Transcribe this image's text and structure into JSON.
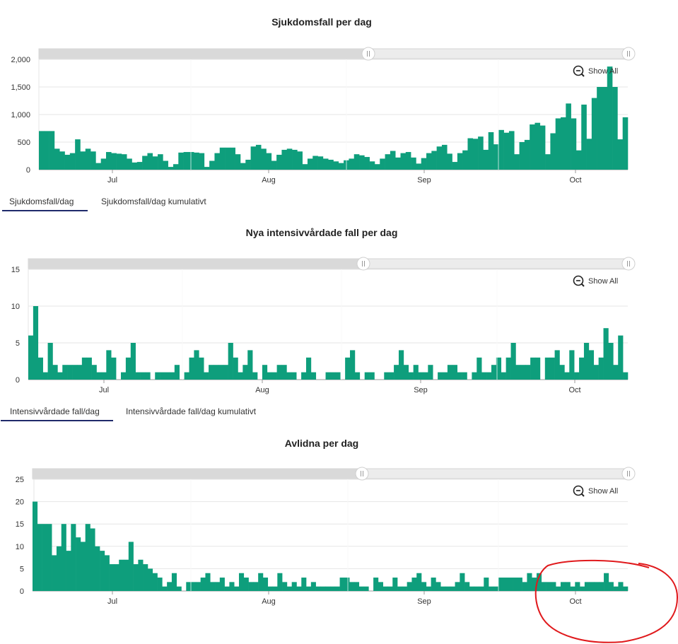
{
  "colors": {
    "bar": "#0e9e7c",
    "grid": "#e6e6e6",
    "scroll_bg": "#e3e3e3",
    "tab_underline": "#1f2a6b",
    "annotation": "#e0191c"
  },
  "zoom_label": "Show All",
  "tabs_1": [
    "Sjukdomsfall/dag",
    "Sjukdomsfall/dag kumulativt"
  ],
  "tabs_2": [
    "Intensivvårdade fall/dag",
    "Intensivvårdade fall/dag kumulativt"
  ],
  "chart_data": [
    {
      "type": "bar",
      "title": "Sjukdomsfall per dag",
      "ylim": [
        0,
        2000
      ],
      "yticks": [
        0,
        500,
        1000,
        1500,
        2000
      ],
      "ytick_labels": [
        "0",
        "500",
        "1,000",
        "1,500",
        "2,000"
      ],
      "month_labels": [
        "Jul",
        "Aug",
        "Sep",
        "Oct"
      ],
      "values": [
        700,
        700,
        700,
        380,
        330,
        270,
        300,
        550,
        330,
        380,
        330,
        120,
        200,
        320,
        300,
        290,
        280,
        200,
        130,
        140,
        250,
        300,
        240,
        280,
        160,
        50,
        100,
        310,
        320,
        320,
        310,
        300,
        50,
        160,
        300,
        400,
        400,
        400,
        280,
        120,
        180,
        420,
        450,
        380,
        300,
        160,
        270,
        360,
        380,
        360,
        330,
        100,
        200,
        250,
        240,
        200,
        180,
        150,
        120,
        170,
        200,
        280,
        260,
        230,
        150,
        100,
        200,
        280,
        340,
        220,
        300,
        320,
        220,
        110,
        210,
        300,
        340,
        420,
        450,
        290,
        140,
        300,
        350,
        570,
        560,
        600,
        360,
        680,
        460,
        720,
        670,
        700,
        280,
        500,
        540,
        820,
        850,
        800,
        280,
        660,
        930,
        950,
        1200,
        930,
        350,
        1180,
        560,
        1300,
        1500,
        1500,
        1870,
        1500,
        550,
        950
      ]
    },
    {
      "type": "bar",
      "title": "Nya intensivvårdade fall per dag",
      "ylim": [
        0,
        15
      ],
      "yticks": [
        0,
        5,
        10,
        15
      ],
      "ytick_labels": [
        "0",
        "5",
        "10",
        "15"
      ],
      "month_labels": [
        "Jul",
        "Aug",
        "Sep",
        "Oct"
      ],
      "values": [
        6,
        10,
        3,
        1,
        5,
        2,
        1,
        2,
        2,
        2,
        2,
        3,
        3,
        2,
        1,
        1,
        4,
        3,
        0,
        1,
        3,
        5,
        1,
        1,
        1,
        0,
        1,
        1,
        1,
        1,
        2,
        0,
        1,
        3,
        4,
        3,
        1,
        2,
        2,
        2,
        2,
        5,
        3,
        1,
        2,
        4,
        1,
        0,
        2,
        1,
        1,
        2,
        2,
        1,
        1,
        0,
        1,
        3,
        1,
        0,
        0,
        1,
        1,
        1,
        0,
        3,
        4,
        1,
        0,
        1,
        1,
        0,
        0,
        1,
        1,
        2,
        4,
        2,
        1,
        2,
        1,
        1,
        2,
        0,
        1,
        1,
        2,
        2,
        1,
        1,
        0,
        1,
        3,
        1,
        1,
        2,
        3,
        1,
        3,
        5,
        2,
        2,
        2,
        3,
        3,
        0,
        3,
        3,
        4,
        2,
        1,
        4,
        1,
        3,
        5,
        4,
        2,
        3,
        7,
        5,
        2,
        6,
        1
      ]
    },
    {
      "type": "bar",
      "title": "Avlidna per dag",
      "ylim": [
        0,
        25
      ],
      "yticks": [
        0,
        5,
        10,
        15,
        20,
        25
      ],
      "ytick_labels": [
        "0",
        "5",
        "10",
        "15",
        "20",
        "25"
      ],
      "month_labels": [
        "Jul",
        "Aug",
        "Sep",
        "Oct"
      ],
      "values": [
        20,
        15,
        15,
        15,
        8,
        10,
        15,
        9,
        15,
        12,
        11,
        15,
        14,
        10,
        9,
        8,
        6,
        6,
        7,
        7,
        11,
        6,
        7,
        6,
        5,
        4,
        3,
        1,
        2,
        4,
        1,
        0,
        2,
        2,
        2,
        3,
        4,
        2,
        2,
        3,
        1,
        2,
        1,
        4,
        3,
        2,
        2,
        4,
        3,
        1,
        1,
        4,
        2,
        1,
        2,
        1,
        3,
        1,
        2,
        1,
        1,
        1,
        1,
        1,
        3,
        3,
        2,
        2,
        1,
        1,
        0,
        3,
        2,
        1,
        1,
        3,
        1,
        1,
        2,
        3,
        4,
        2,
        1,
        3,
        2,
        1,
        1,
        1,
        2,
        4,
        2,
        1,
        1,
        1,
        3,
        1,
        1,
        3,
        3,
        3,
        3,
        3,
        2,
        4,
        3,
        4,
        2,
        2,
        2,
        1,
        2,
        2,
        1,
        2,
        1,
        2,
        2,
        2,
        2,
        4,
        2,
        1,
        2,
        1
      ]
    }
  ]
}
